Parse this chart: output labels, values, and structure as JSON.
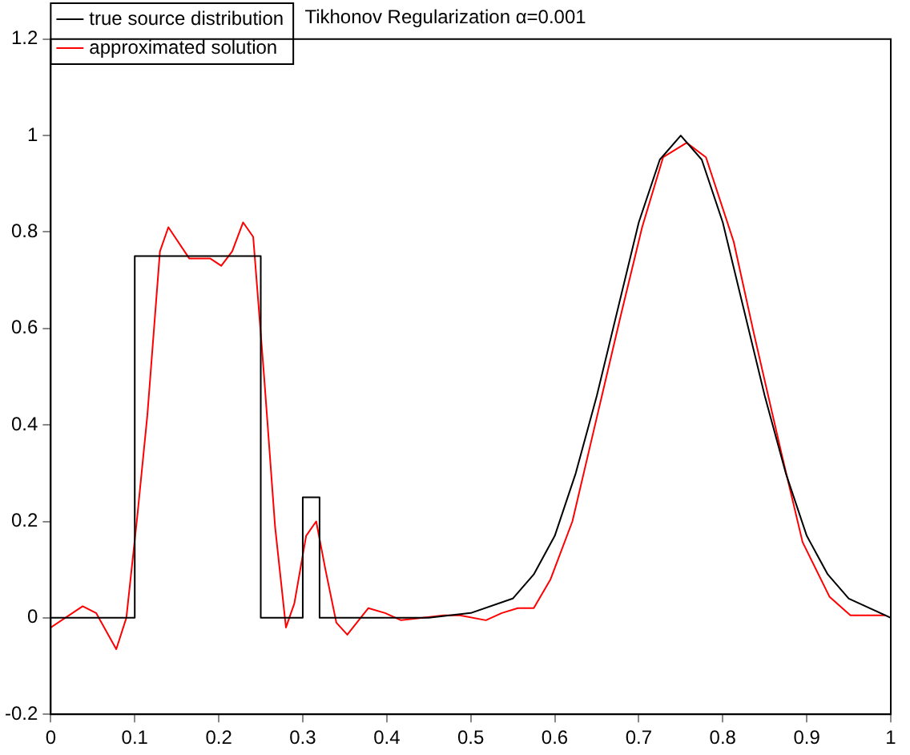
{
  "chart_data": {
    "type": "line",
    "title": "Tikhonov Regularization α=0.001",
    "series": [
      {
        "name": "true source distribution",
        "color": "#000000",
        "x": [
          0,
          0.1,
          0.1,
          0.25,
          0.25,
          0.3,
          0.3,
          0.32,
          0.32,
          0.45,
          0.5,
          0.55,
          0.575,
          0.6,
          0.625,
          0.65,
          0.675,
          0.7,
          0.725,
          0.75,
          0.775,
          0.8,
          0.825,
          0.85,
          0.875,
          0.9,
          0.925,
          0.95,
          1
        ],
        "values": [
          0,
          0,
          0.75,
          0.75,
          0,
          0,
          0.25,
          0.25,
          0,
          0,
          0.01,
          0.04,
          0.09,
          0.17,
          0.3,
          0.46,
          0.64,
          0.82,
          0.95,
          1,
          0.95,
          0.82,
          0.64,
          0.46,
          0.3,
          0.17,
          0.09,
          0.04,
          0
        ]
      },
      {
        "name": "approximated solution",
        "color": "#ff0000",
        "x": [
          0,
          0.038,
          0.054,
          0.078,
          0.09,
          0.103,
          0.115,
          0.13,
          0.14,
          0.165,
          0.19,
          0.203,
          0.216,
          0.229,
          0.241,
          0.254,
          0.267,
          0.28,
          0.29,
          0.304,
          0.316,
          0.327,
          0.34,
          0.353,
          0.378,
          0.398,
          0.417,
          0.468,
          0.487,
          0.518,
          0.537,
          0.556,
          0.575,
          0.595,
          0.621,
          0.652,
          0.679,
          0.704,
          0.729,
          0.757,
          0.78,
          0.813,
          0.837,
          0.87,
          0.895,
          0.927,
          0.952,
          0.994
        ],
        "values": [
          -0.02,
          0.024,
          0.01,
          -0.065,
          0,
          0.21,
          0.42,
          0.76,
          0.81,
          0.745,
          0.745,
          0.73,
          0.76,
          0.82,
          0.79,
          0.5,
          0.19,
          -0.02,
          0.03,
          0.17,
          0.2,
          0.1,
          -0.01,
          -0.035,
          0.02,
          0.01,
          -0.005,
          0.005,
          0.005,
          -0.005,
          0.01,
          0.02,
          0.02,
          0.08,
          0.2,
          0.43,
          0.63,
          0.81,
          0.955,
          0.985,
          0.955,
          0.78,
          0.59,
          0.34,
          0.157,
          0.044,
          0.005,
          0.005
        ]
      }
    ],
    "xlim": [
      0,
      1
    ],
    "xticks": [
      0,
      0.1,
      0.2,
      0.3,
      0.4,
      0.5,
      0.6,
      0.7,
      0.8,
      0.9,
      1
    ],
    "ylim": [
      -0.2,
      1.2
    ],
    "yticks": [
      -0.2,
      0,
      0.2,
      0.4,
      0.6,
      0.8,
      1,
      1.2
    ],
    "legend": "top left",
    "marker": "none",
    "line_style": "solid",
    "grid": false
  }
}
